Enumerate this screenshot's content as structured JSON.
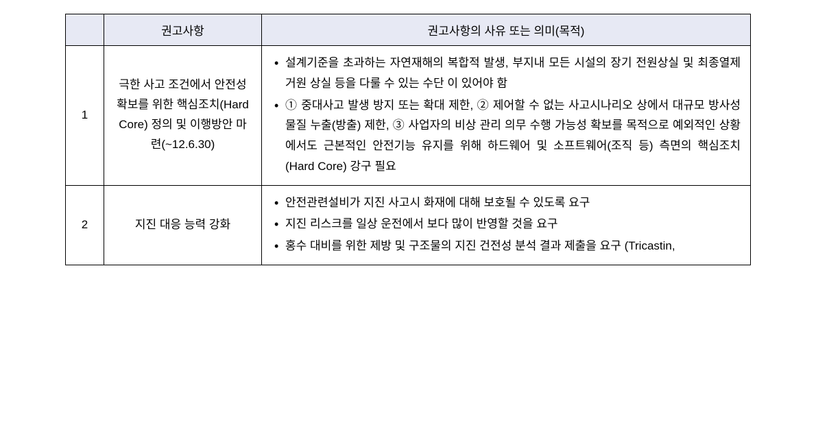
{
  "table": {
    "header_bg": "#e7e9f4",
    "border_color": "#000000",
    "headers": {
      "num": "",
      "recommendation": "권고사항",
      "reason": "권고사항의 사유 또는 의미(목적)"
    },
    "rows": [
      {
        "num": "1",
        "recommendation": "극한 사고 조건에서 안전성 확보를 위한 핵심조치(Hard Core) 정의 및 이행방안 마련(~12.6.30)",
        "reasons": [
          "설계기준을 초과하는 자연재해의 복합적 발생, 부지내 모든 시설의 장기 전원상실 및 최종열제거원 상실 등을 다룰 수 있는 수단 이 있어야 함",
          "① 중대사고 발생 방지 또는 확대 제한, ② 제어할 수 없는 사고시나리오 상에서 대규모 방사성물질 누출(방출) 제한, ③ 사업자의 비상 관리 의무 수행 가능성 확보를 목적으로 예외적인 상황에서도 근본적인 안전기능 유지를 위해 하드웨어 및 소프트웨어(조직 등) 측면의 핵심조치(Hard Core) 강구 필요"
        ]
      },
      {
        "num": "2",
        "recommendation": "지진 대응 능력 강화",
        "reasons": [
          "안전관련설비가 지진 사고시 화재에 대해 보호될 수 있도록 요구",
          "지진 리스크를 일상 운전에서 보다 많이 반영할 것을 요구",
          "홍수 대비를 위한 제방 및 구조물의 지진 건전성 분석 결과 제출을 요구 (Tricastin,"
        ]
      }
    ]
  }
}
